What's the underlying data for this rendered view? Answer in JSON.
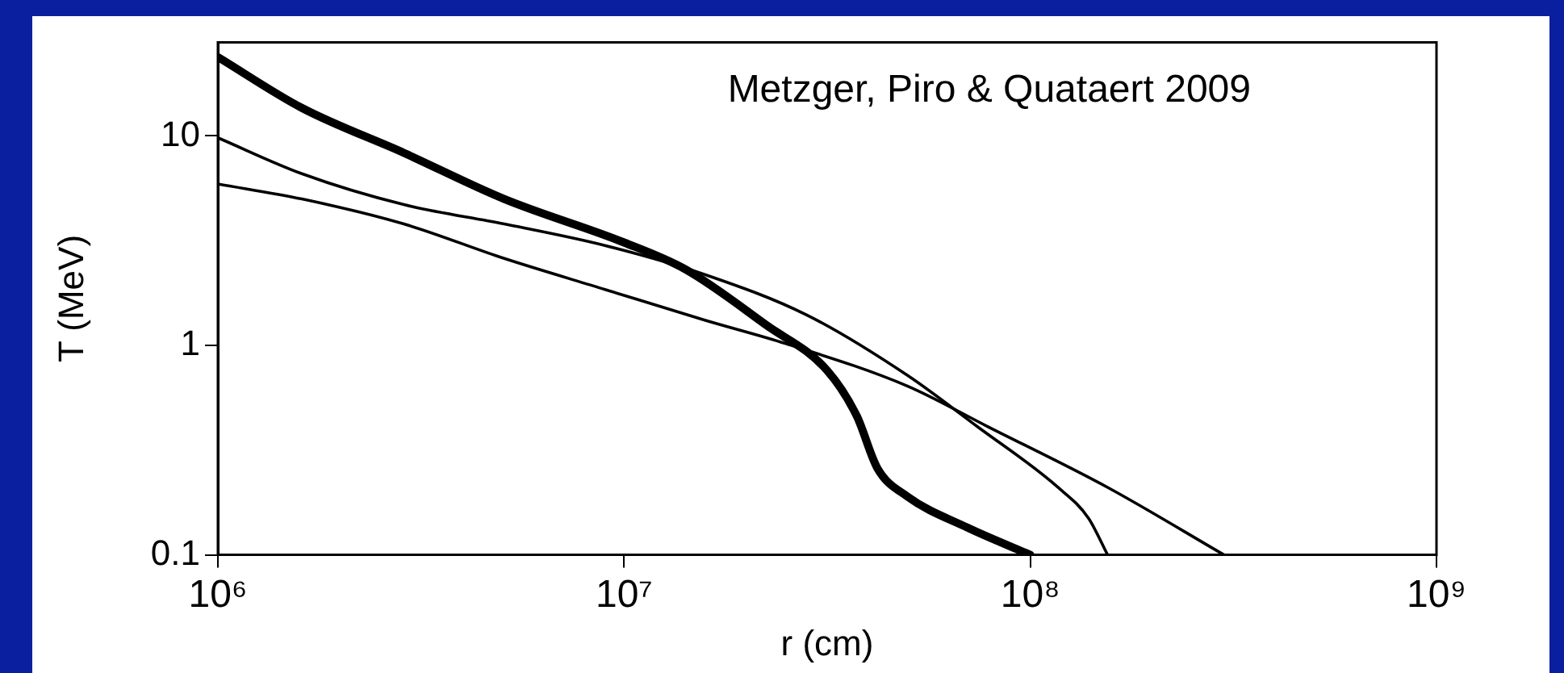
{
  "chart_data": {
    "type": "line",
    "xlabel": "r (cm)",
    "ylabel": "T (MeV)",
    "log": "xy",
    "grid": false,
    "legend": false,
    "marker": "none",
    "line_style": "solid",
    "xlim": [
      1000000,
      1000000000
    ],
    "ylim": [
      0.1,
      28
    ],
    "xticks": [
      {
        "value": 1000000,
        "label": "10⁶"
      },
      {
        "value": 10000000,
        "label": "10⁷"
      },
      {
        "value": 100000000,
        "label": "10⁸"
      },
      {
        "value": 1000000000,
        "label": "10⁹"
      }
    ],
    "yticks": [
      0.1,
      1,
      10
    ],
    "annotations": [
      "Metzger, Piro & Quataert 2009"
    ],
    "series": [
      {
        "color": "#000000",
        "x": [
          1000000,
          1610000,
          2870000,
          5070000,
          10000000,
          14200000,
          22400000,
          31600000,
          37400000,
          42000000,
          49800000,
          70000000,
          100000000
        ],
        "values": [
          23.8,
          13.6,
          8.3,
          5.0,
          3.1,
          2.3,
          1.25,
          0.76,
          0.46,
          0.26,
          0.19,
          0.135,
          0.1
        ]
      },
      {
        "color": "#000000",
        "x": [
          1000000,
          1610000,
          2870000,
          5070000,
          8970000,
          15800000,
          28100000,
          49800000,
          74000000,
          117000000,
          139000000,
          155000000
        ],
        "values": [
          9.8,
          6.6,
          4.7,
          3.8,
          3.0,
          2.18,
          1.4,
          0.72,
          0.41,
          0.21,
          0.15,
          0.1
        ]
      },
      {
        "color": "#000000",
        "x": [
          1000000,
          1610000,
          2870000,
          5070000,
          8970000,
          15800000,
          25000000,
          49800000,
          78500000,
          155000000,
          300000000
        ],
        "values": [
          5.9,
          5.0,
          3.8,
          2.6,
          1.85,
          1.32,
          1.02,
          0.64,
          0.41,
          0.21,
          0.1
        ]
      }
    ]
  }
}
